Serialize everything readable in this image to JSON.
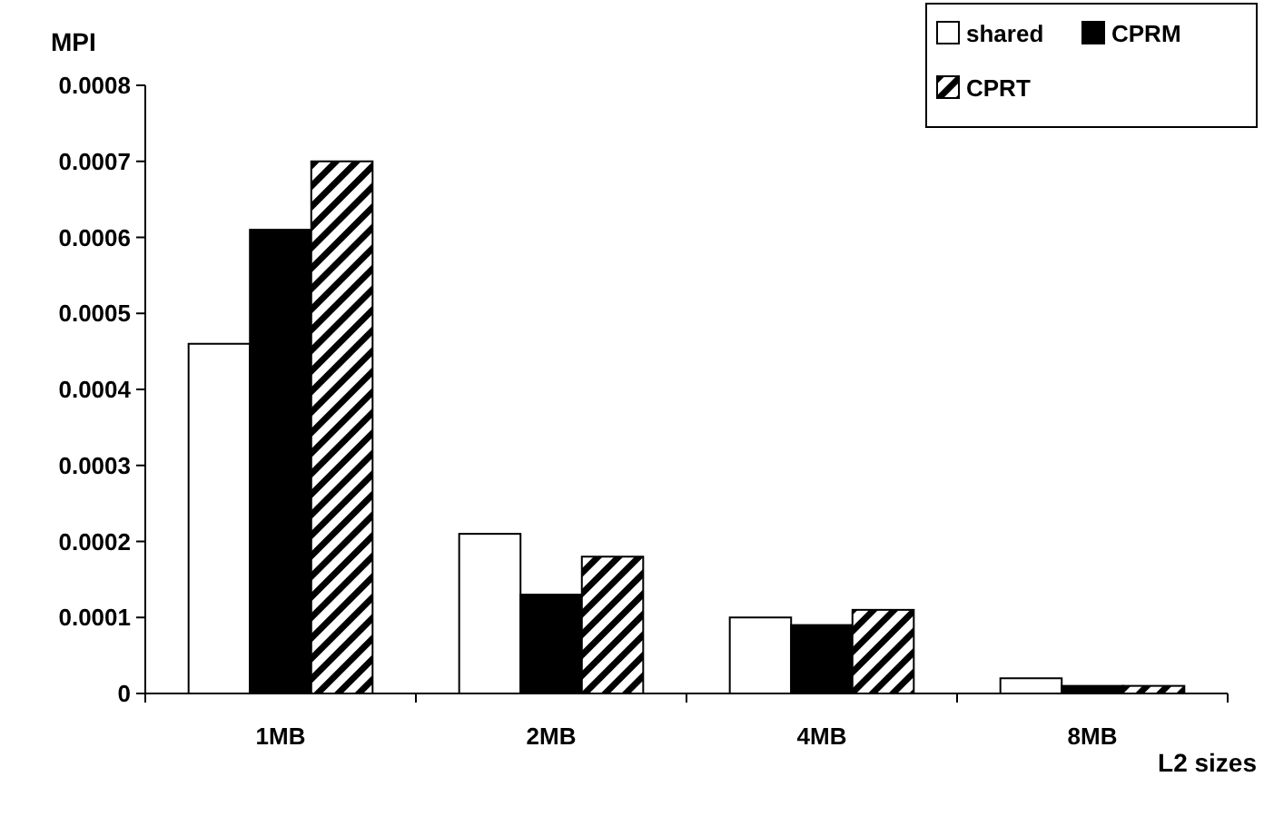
{
  "chart_data": {
    "type": "bar",
    "xlabel": "L2 sizes",
    "ylabel": "MPI",
    "categories": [
      "1MB",
      "2MB",
      "4MB",
      "8MB"
    ],
    "series": [
      {
        "name": "shared",
        "color": "#ffffff",
        "values": [
          0.00046,
          0.00021,
          0.0001,
          2e-05
        ]
      },
      {
        "name": "CPRM",
        "color": "#000000",
        "values": [
          0.00061,
          0.00013,
          9e-05,
          1e-05
        ]
      },
      {
        "name": "CPRT",
        "color": "#000000",
        "values": [
          0.0007,
          0.00018,
          0.00011,
          1e-05
        ]
      }
    ],
    "ylim": [
      0,
      0.0008
    ],
    "yticks": [
      0,
      0.0001,
      0.0002,
      0.0003,
      0.0004,
      0.0005,
      0.0006,
      0.0007,
      0.0008
    ],
    "grid": false,
    "legend": "top right"
  }
}
